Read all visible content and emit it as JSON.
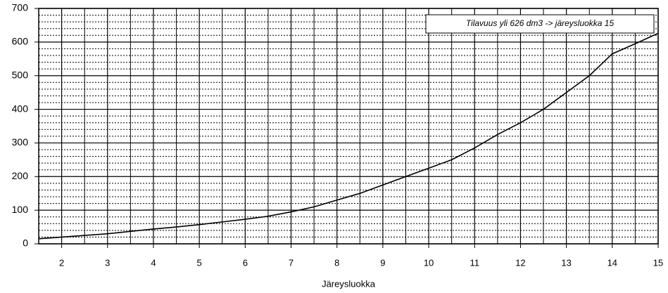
{
  "chart_data": {
    "type": "line",
    "xlabel": "Järeysluokka",
    "annotation": "Tilavuus yli 626 dm3 -> järeysluokka 15",
    "x": [
      1.5,
      2,
      2.5,
      3,
      3.5,
      4,
      4.5,
      5,
      5.5,
      6,
      6.5,
      7,
      7.5,
      8,
      8.5,
      9,
      9.5,
      10,
      10.5,
      11,
      11.5,
      12,
      12.5,
      13,
      13.5,
      14,
      14.5,
      15
    ],
    "values": [
      15,
      20,
      25,
      30,
      37,
      44,
      50,
      57,
      65,
      73,
      82,
      95,
      110,
      130,
      150,
      175,
      200,
      225,
      250,
      285,
      325,
      360,
      400,
      450,
      500,
      565,
      595,
      626
    ],
    "color": "#000000",
    "xlim": [
      1.5,
      15
    ],
    "xticks": [
      2,
      3,
      4,
      5,
      6,
      7,
      8,
      9,
      10,
      11,
      12,
      13,
      14,
      15
    ],
    "ylim": [
      0,
      700
    ],
    "yticks": [
      0,
      100,
      200,
      300,
      400,
      500,
      600,
      700
    ],
    "grid": true
  }
}
